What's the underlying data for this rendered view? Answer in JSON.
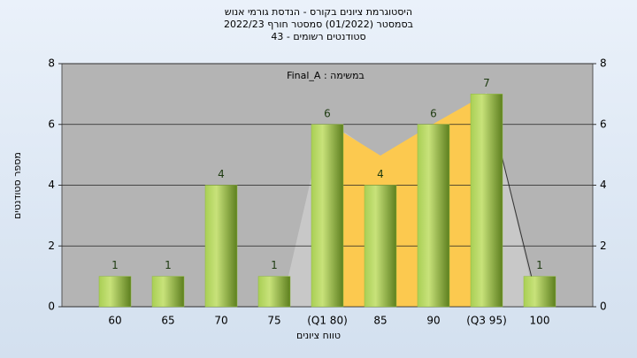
{
  "chart_data": {
    "type": "bar",
    "title": "היסטוגרמת ציונים בקורס - הנדסת גורמי אנוש",
    "subtitle": "בסמסטר  (01/2022)  סמסטר חורף 2022/23",
    "subtitle2": "סטודנטים רשומים - 43",
    "annotation": "במשימה : Final_A",
    "x_label": "טווח ציונים",
    "y_label": "מספר סטודנטים",
    "categories": [
      "60",
      "65",
      "70",
      "75",
      "(Q1 80)",
      "85",
      "90",
      "(Q3 95)",
      "100"
    ],
    "values": [
      1,
      1,
      4,
      1,
      6,
      4,
      6,
      7,
      1
    ],
    "color": "#8fba3c",
    "ylim": [
      0,
      8
    ],
    "yticks": [
      0,
      2,
      4,
      6,
      8
    ],
    "grid": true
  }
}
